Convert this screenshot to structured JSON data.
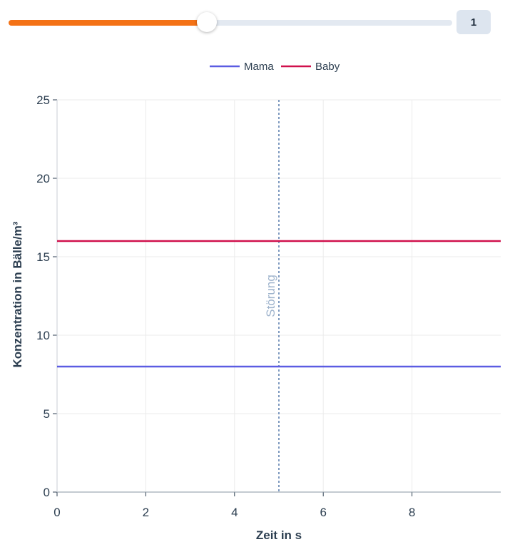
{
  "slider": {
    "fraction": 0.447,
    "value": "1"
  },
  "colors": {
    "accent": "#f47216",
    "mama": "#5b5ce2",
    "baby": "#d0104c",
    "disturbance": "#7f9ac0"
  },
  "chart_data": {
    "type": "line",
    "title": "",
    "xlabel": "Zeit in s",
    "ylabel": "Konzentration in Bälle/m³",
    "xlim": [
      0,
      10
    ],
    "ylim": [
      0,
      25
    ],
    "xticks": [
      "0",
      "2",
      "4",
      "6",
      "8"
    ],
    "yticks": [
      "0",
      "5",
      "10",
      "15",
      "20",
      "25"
    ],
    "grid": true,
    "legend_position": "top-center",
    "series": [
      {
        "name": "Mama",
        "color": "#5b5ce2",
        "x": [
          0,
          10
        ],
        "y": [
          8,
          8
        ]
      },
      {
        "name": "Baby",
        "color": "#d0104c",
        "x": [
          0,
          10
        ],
        "y": [
          16,
          16
        ]
      }
    ],
    "annotations": [
      {
        "type": "vline",
        "x": 5,
        "label": "Störung",
        "style": "dotted"
      }
    ]
  }
}
